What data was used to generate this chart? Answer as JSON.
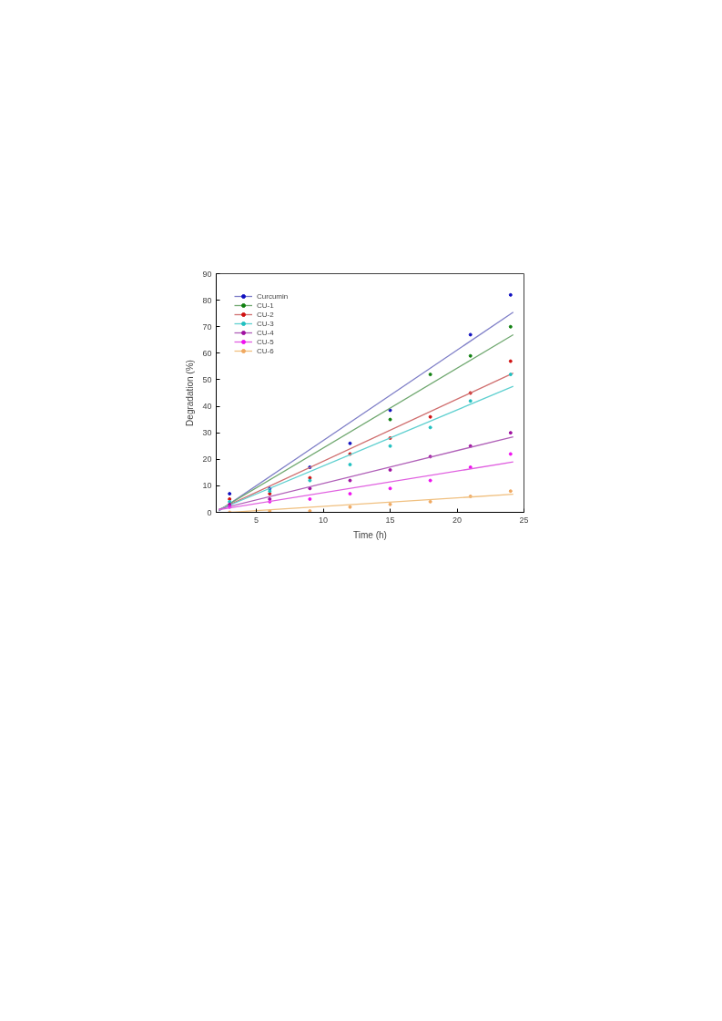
{
  "chart_data": {
    "type": "scatter",
    "xlabel": "Time (h)",
    "ylabel": "Degradation (%)",
    "x": [
      3,
      6,
      9,
      12,
      15,
      18,
      21,
      24
    ],
    "xlim": [
      2,
      25
    ],
    "xticks": [
      5,
      10,
      15,
      20,
      25
    ],
    "ylim": [
      0,
      90
    ],
    "yticks": [
      0,
      10,
      20,
      30,
      40,
      50,
      60,
      70,
      80,
      90
    ],
    "grid": false,
    "legend": "top left",
    "marker": "circle",
    "line_style": "solid",
    "series": [
      {
        "name": "Curcumin",
        "color": "#1010c0",
        "values": [
          7,
          9,
          17,
          26,
          38.5,
          null,
          67,
          82
        ]
      },
      {
        "type": "line",
        "marker": "none",
        "color": "#8080c8",
        "x": [
          2.2,
          24.2
        ],
        "values": [
          0.5,
          75.5
        ]
      },
      {
        "name": "CU-1",
        "color": "#108010",
        "values": [
          null,
          null,
          null,
          null,
          35,
          52,
          59,
          70
        ]
      },
      {
        "type": "line",
        "marker": "none",
        "color": "#70a870",
        "x": [
          2.2,
          24.2
        ],
        "values": [
          0.8,
          67
        ]
      },
      {
        "name": "CU-2",
        "color": "#d01010",
        "values": [
          5,
          7,
          13,
          22,
          28,
          36,
          45,
          57
        ]
      },
      {
        "type": "line",
        "marker": "none",
        "color": "#d07070",
        "x": [
          2.2,
          24.2
        ],
        "values": [
          1,
          52.5
        ]
      },
      {
        "name": "CU-3",
        "color": "#20c0c0",
        "values": [
          4,
          8,
          12,
          18,
          25,
          32,
          42,
          52
        ]
      },
      {
        "type": "line",
        "marker": "none",
        "color": "#60d0d0",
        "x": [
          2.2,
          24.2
        ],
        "values": [
          1,
          47.5
        ]
      },
      {
        "name": "CU-4",
        "color": "#a010a0",
        "values": [
          3,
          5,
          9,
          12,
          16,
          21,
          25,
          30
        ]
      },
      {
        "type": "line",
        "marker": "none",
        "color": "#b060b8",
        "x": [
          2.2,
          24.2
        ],
        "values": [
          1.2,
          28.5
        ]
      },
      {
        "name": "CU-5",
        "color": "#f010f0",
        "values": [
          2,
          4,
          5,
          7,
          9,
          12,
          17,
          22
        ]
      },
      {
        "type": "line",
        "marker": "none",
        "color": "#e060e0",
        "x": [
          2.2,
          24.2
        ],
        "values": [
          1,
          19
        ]
      },
      {
        "name": "CU-6",
        "color": "#f0a860",
        "values": [
          0,
          0.5,
          0.5,
          2,
          3,
          4,
          6,
          8
        ]
      },
      {
        "type": "line",
        "marker": "none",
        "color": "#f0c080",
        "x": [
          3,
          24.2
        ],
        "values": [
          0,
          6.8
        ]
      }
    ]
  }
}
